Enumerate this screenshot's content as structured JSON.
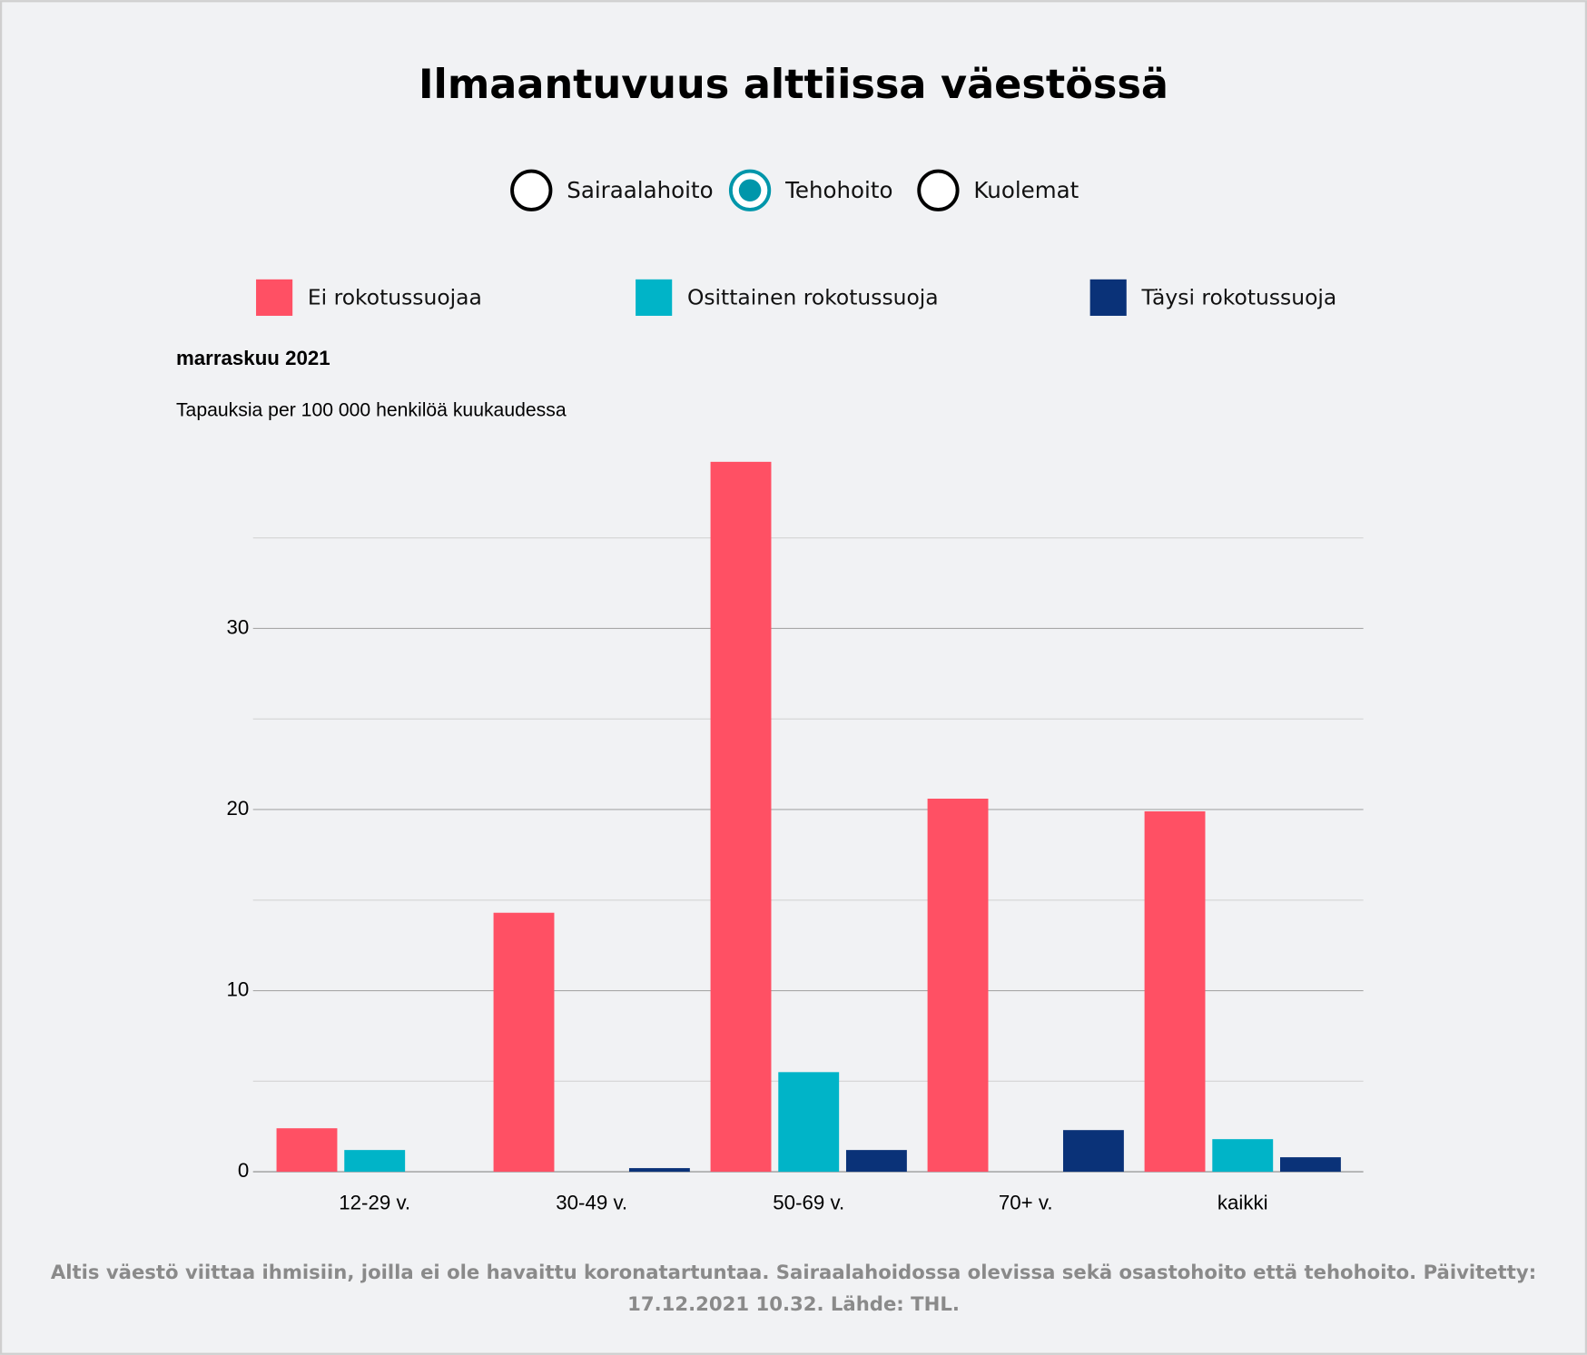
{
  "title": "Ilmaantuvuus alttiissa väestössä",
  "options": [
    "Sairaalahoito",
    "Tehohoito",
    "Kuolemat"
  ],
  "selected": 1,
  "chart_data": {
    "type": "bar",
    "subtitle": "marraskuu 2021",
    "y_label": "Tapauksia per 100 000 henkilöä kuukaudessa",
    "categories": [
      "12-29 v.",
      "30-49 v.",
      "50-69 v.",
      "70+ v.",
      "kaikki"
    ],
    "series": [
      {
        "name": "Ei rokotussuojaa",
        "color": "#ff5064",
        "values": [
          2.4,
          14.3,
          39.2,
          20.6,
          19.9
        ]
      },
      {
        "name": "Osittainen rokotussuoja",
        "color": "#00b4c8",
        "values": [
          1.2,
          0,
          5.5,
          0,
          1.8
        ]
      },
      {
        "name": "Täysi rokotussuoja",
        "color": "#0a3278",
        "values": [
          0,
          0.2,
          1.2,
          2.3,
          0.8
        ]
      }
    ],
    "ylim": [
      0,
      40
    ],
    "yticks": [
      0,
      10,
      20,
      30
    ],
    "minor_yticks": [
      5,
      15,
      25,
      35
    ],
    "grid": true
  },
  "footnote": "Altis väestö viittaa ihmisiin, joilla ei ole havaittu koronatartuntaa. Sairaalahoidossa olevissa sekä osastohoito että tehohoito. Päivitetty: 17.12.2021 10.32. Lähde: THL."
}
